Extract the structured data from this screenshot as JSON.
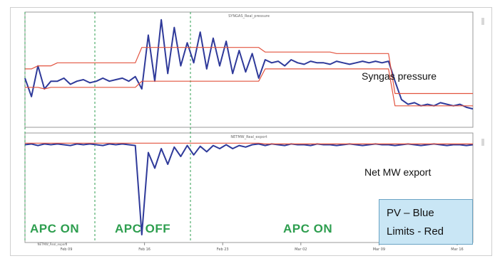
{
  "colors": {
    "pv": "#2f3a9a",
    "limit": "#e2533f",
    "mode_line": "#2e9e4f",
    "mode_text": "#2e9e4f",
    "legend_bg": "#c9e6f5"
  },
  "panels": [
    {
      "title_tag": "SYNGAS_Real_pressure",
      "annotation": "Syngas pressure"
    },
    {
      "title_tag": "NETMW_Real_export",
      "annotation": "Net MW export"
    }
  ],
  "mode_labels": [
    "APC ON",
    "APC OFF",
    "APC ON"
  ],
  "legend": {
    "pv": "PV – Blue",
    "limits": "Limits - Red"
  },
  "x_ticks": [
    "Feb 09",
    "Feb 16",
    "Feb 23",
    "Mar 02",
    "Mar 09",
    "Mar 16"
  ],
  "bottom_tag": "NETMW_Real_export",
  "chart_data": [
    {
      "type": "line",
      "title": "",
      "series": [
        {
          "name": "PV",
          "color": "#2f3a9a",
          "values": [
            0.62,
            0.5,
            0.7,
            0.55,
            0.6,
            0.6,
            0.62,
            0.58,
            0.6,
            0.61,
            0.59,
            0.6,
            0.62,
            0.6,
            0.61,
            0.62,
            0.6,
            0.63,
            0.55,
            0.9,
            0.6,
            1.0,
            0.65,
            0.95,
            0.7,
            0.85,
            0.72,
            0.92,
            0.68,
            0.88,
            0.7,
            0.86,
            0.65,
            0.8,
            0.66,
            0.78,
            0.62,
            0.74,
            0.72,
            0.73,
            0.7,
            0.74,
            0.72,
            0.71,
            0.73,
            0.72,
            0.72,
            0.71,
            0.73,
            0.72,
            0.71,
            0.72,
            0.73,
            0.72,
            0.73,
            0.72,
            0.73,
            0.6,
            0.48,
            0.45,
            0.46,
            0.44,
            0.45,
            0.44,
            0.46,
            0.45,
            0.44,
            0.45,
            0.43,
            0.42
          ]
        },
        {
          "name": "Upper limit",
          "color": "#e2533f",
          "values": [
            0.68,
            0.68,
            0.7,
            0.7,
            0.7,
            0.72,
            0.72,
            0.72,
            0.72,
            0.72,
            0.72,
            0.72,
            0.72,
            0.72,
            0.72,
            0.72,
            0.72,
            0.72,
            0.82,
            0.82,
            0.82,
            0.82,
            0.82,
            0.82,
            0.82,
            0.82,
            0.82,
            0.82,
            0.82,
            0.82,
            0.82,
            0.82,
            0.82,
            0.82,
            0.82,
            0.82,
            0.82,
            0.79,
            0.79,
            0.79,
            0.79,
            0.79,
            0.79,
            0.79,
            0.79,
            0.79,
            0.79,
            0.79,
            0.78,
            0.78,
            0.78,
            0.78,
            0.78,
            0.78,
            0.78,
            0.78,
            0.78,
            0.52,
            0.52,
            0.52,
            0.52,
            0.52,
            0.52,
            0.52,
            0.52,
            0.52,
            0.52,
            0.52,
            0.52,
            0.52
          ]
        },
        {
          "name": "Lower limit",
          "color": "#e2533f",
          "values": [
            0.56,
            0.56,
            0.56,
            0.55,
            0.56,
            0.56,
            0.56,
            0.56,
            0.56,
            0.56,
            0.56,
            0.56,
            0.56,
            0.56,
            0.56,
            0.56,
            0.56,
            0.56,
            0.6,
            0.6,
            0.6,
            0.6,
            0.6,
            0.6,
            0.6,
            0.6,
            0.6,
            0.6,
            0.6,
            0.6,
            0.6,
            0.6,
            0.6,
            0.6,
            0.6,
            0.6,
            0.6,
            0.68,
            0.68,
            0.68,
            0.68,
            0.68,
            0.68,
            0.68,
            0.68,
            0.68,
            0.68,
            0.68,
            0.68,
            0.68,
            0.68,
            0.68,
            0.68,
            0.68,
            0.68,
            0.68,
            0.68,
            0.44,
            0.44,
            0.44,
            0.44,
            0.44,
            0.44,
            0.44,
            0.44,
            0.44,
            0.44,
            0.44,
            0.44,
            0.44
          ]
        }
      ],
      "ylim": [
        0.3,
        1.05
      ],
      "xlabel": "",
      "ylabel": ""
    },
    {
      "type": "line",
      "title": "",
      "series": [
        {
          "name": "PV",
          "color": "#2f3a9a",
          "values": [
            0.85,
            0.86,
            0.84,
            0.86,
            0.85,
            0.86,
            0.85,
            0.84,
            0.86,
            0.85,
            0.86,
            0.85,
            0.84,
            0.86,
            0.85,
            0.86,
            0.85,
            0.84,
            -0.3,
            0.75,
            0.55,
            0.8,
            0.6,
            0.82,
            0.7,
            0.84,
            0.72,
            0.83,
            0.76,
            0.84,
            0.8,
            0.85,
            0.8,
            0.84,
            0.82,
            0.85,
            0.86,
            0.84,
            0.86,
            0.85,
            0.84,
            0.86,
            0.85,
            0.85,
            0.84,
            0.86,
            0.85,
            0.85,
            0.84,
            0.85,
            0.86,
            0.85,
            0.84,
            0.85,
            0.86,
            0.85,
            0.85,
            0.84,
            0.85,
            0.86,
            0.85,
            0.84,
            0.85,
            0.86,
            0.85,
            0.84,
            0.85,
            0.85,
            0.84,
            0.85
          ]
        },
        {
          "name": "Upper limit",
          "color": "#e2533f",
          "values": [
            0.87,
            0.87,
            0.87,
            0.87,
            0.87,
            0.87,
            0.87,
            0.87,
            0.87,
            0.87,
            0.87,
            0.87,
            0.87,
            0.87,
            0.87,
            0.87,
            0.87,
            0.87,
            0.87,
            0.87,
            0.87,
            0.87,
            0.87,
            0.87,
            0.87,
            0.87,
            0.87,
            0.87,
            0.87,
            0.87,
            0.87,
            0.87,
            0.87,
            0.87,
            0.87,
            0.87,
            0.87,
            0.86,
            0.86,
            0.86,
            0.86,
            0.86,
            0.86,
            0.86,
            0.86,
            0.86,
            0.86,
            0.86,
            0.86,
            0.86,
            0.86,
            0.86,
            0.86,
            0.86,
            0.86,
            0.86,
            0.86,
            0.86,
            0.86,
            0.86,
            0.86,
            0.86,
            0.86,
            0.86,
            0.86,
            0.86,
            0.86,
            0.86,
            0.86,
            0.86
          ]
        }
      ],
      "ylim": [
        -0.4,
        1.0
      ],
      "xlabel": "",
      "ylabel": ""
    }
  ]
}
